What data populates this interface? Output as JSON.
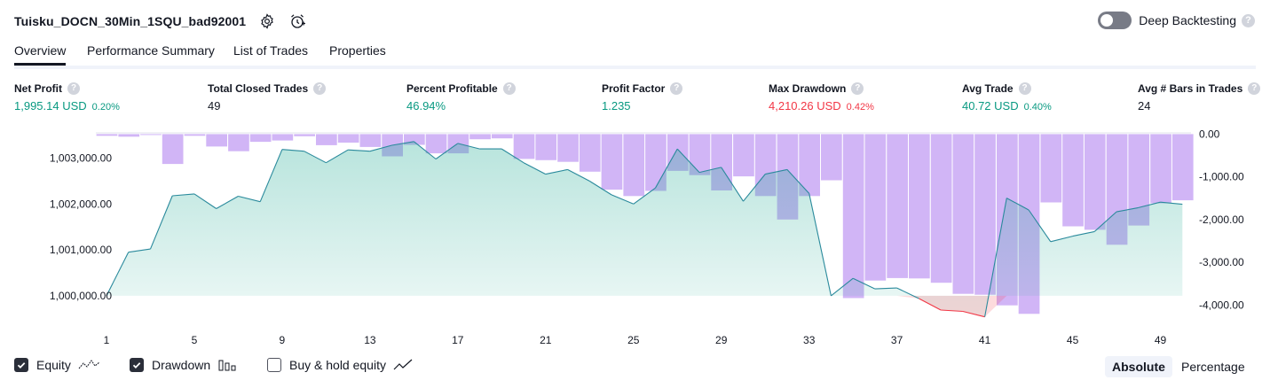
{
  "header": {
    "strategy_title": "Tuisku_DOCN_30Min_1SQU_bad92001",
    "deep_backtesting_label": "Deep Backtesting",
    "deep_backtesting_on": false,
    "help_glyph": "?"
  },
  "tabs": [
    {
      "label": "Overview",
      "active": true
    },
    {
      "label": "Performance Summary",
      "active": false
    },
    {
      "label": "List of Trades",
      "active": false
    },
    {
      "label": "Properties",
      "active": false
    }
  ],
  "metrics": [
    {
      "label": "Net Profit",
      "value": "1,995.14 USD",
      "pct": "0.20%",
      "color": "green"
    },
    {
      "label": "Total Closed Trades",
      "value": "49",
      "pct": "",
      "color": "dark"
    },
    {
      "label": "Percent Profitable",
      "value": "46.94%",
      "pct": "",
      "color": "green"
    },
    {
      "label": "Profit Factor",
      "value": "1.235",
      "pct": "",
      "color": "green"
    },
    {
      "label": "Max Drawdown",
      "value": "4,210.26 USD",
      "pct": "0.42%",
      "color": "red"
    },
    {
      "label": "Avg Trade",
      "value": "40.72 USD",
      "pct": "0.40%",
      "color": "green"
    },
    {
      "label": "Avg # Bars in Trades",
      "value": "24",
      "pct": "",
      "color": "dark"
    }
  ],
  "legend": {
    "equity_label": "Equity",
    "drawdown_label": "Drawdown",
    "buyhold_label": "Buy & hold equity",
    "equity_checked": true,
    "drawdown_checked": true,
    "buyhold_checked": false
  },
  "view_mode": {
    "absolute_label": "Absolute",
    "percentage_label": "Percentage",
    "selected": "Absolute"
  },
  "colors": {
    "equity_line": "#22ab94",
    "equity_below_line": "#f23645",
    "drawdown_bar": "#c9a8f5",
    "text_green": "#089981",
    "text_red": "#f23645"
  },
  "chart_data": {
    "type": "area",
    "x": [
      1,
      2,
      3,
      4,
      5,
      6,
      7,
      8,
      9,
      10,
      11,
      12,
      13,
      14,
      15,
      16,
      17,
      18,
      19,
      20,
      21,
      22,
      23,
      24,
      25,
      26,
      27,
      28,
      29,
      30,
      31,
      32,
      33,
      34,
      35,
      36,
      37,
      38,
      39,
      40,
      41,
      42,
      43,
      44,
      45,
      46,
      47,
      48,
      49,
      50
    ],
    "xticks": [
      "1",
      "5",
      "9",
      "13",
      "17",
      "21",
      "25",
      "29",
      "33",
      "37",
      "41",
      "45",
      "49"
    ],
    "series": [
      {
        "values": [
          1000000,
          1000950,
          1001020,
          1002180,
          1002220,
          1001900,
          1002170,
          1002050,
          1003190,
          1003150,
          1002900,
          1003180,
          1003150,
          1003280,
          1003360,
          1002980,
          1003320,
          1003200,
          1003200,
          1002900,
          1002650,
          1002750,
          1002500,
          1002200,
          1002000,
          1002350,
          1003200,
          1002690,
          1002800,
          1002060,
          1002650,
          1002750,
          1002230,
          1000000,
          1000380,
          1000150,
          1000170,
          999940,
          999690,
          999660,
          999540,
          1002130,
          1001870,
          1001180,
          1001300,
          1001400,
          1001830,
          1001920,
          1002040,
          1001995
        ]
      },
      {
        "values": [
          -40,
          -60,
          -20,
          -700,
          -40,
          -290,
          -400,
          -180,
          -150,
          -50,
          -260,
          -200,
          -300,
          -520,
          -250,
          -450,
          -450,
          -120,
          -100,
          -580,
          -610,
          -650,
          -880,
          -1300,
          -1450,
          -1330,
          -860,
          -960,
          -1320,
          -990,
          -1450,
          -2000,
          -1450,
          -1080,
          -3840,
          -3430,
          -3370,
          -3380,
          -3480,
          -3740,
          -3760,
          -4010,
          -4210,
          -1600,
          -2160,
          -2240,
          -2590,
          -2140,
          -1620,
          -1550
        ]
      }
    ],
    "yticks_left": [
      "1,000,000.00",
      "1,001,000.00",
      "1,002,000.00",
      "1,003,000.00"
    ],
    "yticks_right": [
      "0.00",
      "-1,000.00",
      "-2,000.00",
      "-3,000.00",
      "-4,000.00"
    ],
    "ylim_left": [
      999400,
      1003550
    ],
    "ylim_right": [
      -4430,
      30
    ]
  }
}
